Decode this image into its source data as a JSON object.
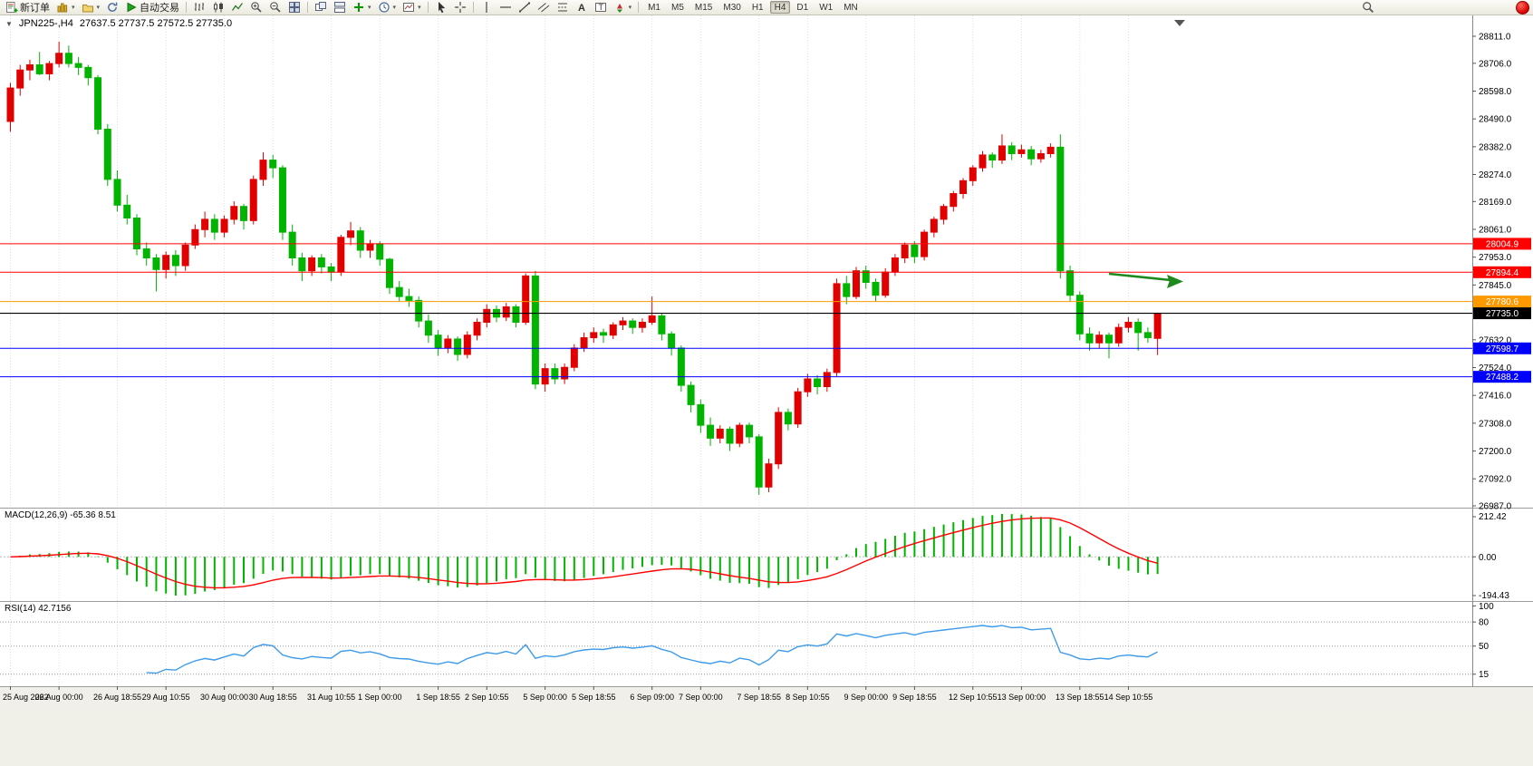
{
  "toolbar": {
    "new_order_label": "新订单",
    "auto_trading_label": "自动交易",
    "timeframes": [
      "M1",
      "M5",
      "M15",
      "M30",
      "H1",
      "H4",
      "D1",
      "W1",
      "MN"
    ],
    "active_timeframe": "H4"
  },
  "chart": {
    "symbol_period": "JPN225-,H4",
    "ohlc": "27637.5 27737.5 27572.5 27735.0"
  },
  "price_axis": {
    "ticks": [
      "28811.0",
      "28706.0",
      "28598.0",
      "28490.0",
      "28382.0",
      "28274.0",
      "28169.0",
      "28061.0",
      "27953.0",
      "27845.0",
      "27632.0",
      "27524.0",
      "27416.0",
      "27308.0",
      "27200.0",
      "27092.0",
      "26987.0"
    ]
  },
  "levels": [
    {
      "price": 28004.9,
      "label": "28004.9",
      "color": "#FF0000"
    },
    {
      "price": 27894.4,
      "label": "27894.4",
      "color": "#FF0000"
    },
    {
      "price": 27780.6,
      "label": "27780.6",
      "color": "#FF9900"
    },
    {
      "price": 27735.0,
      "label": "27735.0",
      "color": "#000000",
      "is_current": true
    },
    {
      "price": 27598.7,
      "label": "27598.7",
      "color": "#0000FF"
    },
    {
      "price": 27488.2,
      "label": "27488.2",
      "color": "#0000FF"
    }
  ],
  "annotation_arrow": {
    "color": "#1E8A1E"
  },
  "macd_panel": {
    "label": "MACD(12,26,9) -65.36 8.51",
    "axis_max": "212.42",
    "axis_zero": "0.00",
    "axis_min": "-194.43",
    "histogram_color": "#00B400",
    "signal_color": "#FF0000"
  },
  "rsi_panel": {
    "label": "RSI(14) 42.7156",
    "axis_ticks": [
      "100",
      "80",
      "50",
      "15"
    ],
    "level_lines": [
      80,
      50,
      15
    ],
    "line_color": "#3D9BE9"
  },
  "chart_data": {
    "type": "candlestick",
    "symbol": "JPN225-",
    "period": "H4",
    "up_color": "#E00000",
    "down_color": "#00B400",
    "price_range": [
      26980,
      28892
    ],
    "indicators": [
      {
        "name": "MACD",
        "params": [
          12,
          26,
          9
        ],
        "values_label": "-65.36 8.51"
      },
      {
        "name": "RSI",
        "params": [
          14
        ],
        "value_label": "42.7156"
      }
    ],
    "time_labels": [
      "25 Aug 2022",
      "26 Aug 00:00",
      "26 Aug 18:55",
      "29 Aug 10:55",
      "30 Aug 00:00",
      "30 Aug 18:55",
      "31 Aug 10:55",
      "1 Sep 00:00",
      "1 Sep 18:55",
      "2 Sep 10:55",
      "5 Sep 00:00",
      "5 Sep 18:55",
      "6 Sep 09:00",
      "7 Sep 00:00",
      "7 Sep 18:55",
      "8 Sep 10:55",
      "9 Sep 00:00",
      "9 Sep 18:55",
      "12 Sep 10:55",
      "13 Sep 00:00",
      "13 Sep 18:55",
      "14 Sep 10:55"
    ],
    "candles": [
      [
        28480,
        28630,
        28440,
        28610
      ],
      [
        28610,
        28700,
        28580,
        28680
      ],
      [
        28680,
        28720,
        28640,
        28700
      ],
      [
        28700,
        28750,
        28660,
        28665
      ],
      [
        28665,
        28715,
        28640,
        28705
      ],
      [
        28705,
        28790,
        28690,
        28745
      ],
      [
        28745,
        28775,
        28690,
        28705
      ],
      [
        28705,
        28730,
        28660,
        28690
      ],
      [
        28690,
        28700,
        28620,
        28650
      ],
      [
        28650,
        28660,
        28430,
        28450
      ],
      [
        28450,
        28470,
        28230,
        28255
      ],
      [
        28255,
        28290,
        28130,
        28155
      ],
      [
        28155,
        28195,
        28080,
        28105
      ],
      [
        28105,
        28120,
        27960,
        27985
      ],
      [
        27985,
        28010,
        27920,
        27950
      ],
      [
        27950,
        27965,
        27820,
        27905
      ],
      [
        27905,
        27975,
        27870,
        27960
      ],
      [
        27960,
        27980,
        27880,
        27920
      ],
      [
        27920,
        28010,
        27900,
        28000
      ],
      [
        28000,
        28080,
        27985,
        28060
      ],
      [
        28060,
        28130,
        28030,
        28100
      ],
      [
        28100,
        28120,
        28020,
        28050
      ],
      [
        28050,
        28115,
        28030,
        28100
      ],
      [
        28100,
        28170,
        28080,
        28150
      ],
      [
        28150,
        28160,
        28060,
        28095
      ],
      [
        28095,
        28270,
        28080,
        28255
      ],
      [
        28255,
        28360,
        28230,
        28330
      ],
      [
        28330,
        28350,
        28260,
        28300
      ],
      [
        28300,
        28310,
        28020,
        28050
      ],
      [
        28050,
        28080,
        27920,
        27950
      ],
      [
        27950,
        27970,
        27860,
        27900
      ],
      [
        27900,
        27960,
        27880,
        27950
      ],
      [
        27950,
        27965,
        27890,
        27915
      ],
      [
        27915,
        27930,
        27860,
        27895
      ],
      [
        27895,
        28040,
        27880,
        28030
      ],
      [
        28030,
        28090,
        28000,
        28055
      ],
      [
        28055,
        28070,
        27950,
        27980
      ],
      [
        27980,
        28020,
        27950,
        28005
      ],
      [
        28005,
        28015,
        27920,
        27945
      ],
      [
        27945,
        27950,
        27810,
        27835
      ],
      [
        27835,
        27860,
        27780,
        27800
      ],
      [
        27800,
        27830,
        27760,
        27785
      ],
      [
        27785,
        27800,
        27680,
        27705
      ],
      [
        27705,
        27730,
        27620,
        27650
      ],
      [
        27650,
        27670,
        27570,
        27600
      ],
      [
        27600,
        27650,
        27580,
        27635
      ],
      [
        27635,
        27645,
        27550,
        27575
      ],
      [
        27575,
        27665,
        27560,
        27650
      ],
      [
        27650,
        27715,
        27630,
        27700
      ],
      [
        27700,
        27770,
        27680,
        27750
      ],
      [
        27750,
        27765,
        27700,
        27720
      ],
      [
        27720,
        27775,
        27705,
        27760
      ],
      [
        27760,
        27770,
        27680,
        27700
      ],
      [
        27700,
        27890,
        27690,
        27880
      ],
      [
        27880,
        27900,
        27440,
        27460
      ],
      [
        27460,
        27540,
        27430,
        27520
      ],
      [
        27520,
        27540,
        27460,
        27480
      ],
      [
        27480,
        27540,
        27460,
        27525
      ],
      [
        27525,
        27615,
        27510,
        27600
      ],
      [
        27600,
        27660,
        27585,
        27640
      ],
      [
        27640,
        27680,
        27620,
        27660
      ],
      [
        27660,
        27675,
        27620,
        27650
      ],
      [
        27650,
        27700,
        27635,
        27690
      ],
      [
        27690,
        27720,
        27670,
        27705
      ],
      [
        27705,
        27715,
        27655,
        27680
      ],
      [
        27680,
        27715,
        27660,
        27700
      ],
      [
        27700,
        27800,
        27690,
        27725
      ],
      [
        27725,
        27735,
        27630,
        27655
      ],
      [
        27655,
        27665,
        27570,
        27600
      ],
      [
        27600,
        27610,
        27430,
        27455
      ],
      [
        27455,
        27470,
        27350,
        27380
      ],
      [
        27380,
        27400,
        27270,
        27300
      ],
      [
        27300,
        27330,
        27220,
        27250
      ],
      [
        27250,
        27300,
        27230,
        27285
      ],
      [
        27285,
        27295,
        27200,
        27230
      ],
      [
        27230,
        27310,
        27215,
        27300
      ],
      [
        27300,
        27310,
        27230,
        27255
      ],
      [
        27255,
        27265,
        27030,
        27060
      ],
      [
        27060,
        27170,
        27040,
        27150
      ],
      [
        27150,
        27370,
        27130,
        27350
      ],
      [
        27350,
        27365,
        27280,
        27305
      ],
      [
        27305,
        27445,
        27290,
        27430
      ],
      [
        27430,
        27500,
        27410,
        27480
      ],
      [
        27480,
        27495,
        27420,
        27450
      ],
      [
        27450,
        27520,
        27430,
        27505
      ],
      [
        27505,
        27870,
        27490,
        27850
      ],
      [
        27850,
        27880,
        27770,
        27800
      ],
      [
        27800,
        27915,
        27790,
        27900
      ],
      [
        27900,
        27920,
        27830,
        27855
      ],
      [
        27855,
        27870,
        27780,
        27805
      ],
      [
        27805,
        27910,
        27795,
        27895
      ],
      [
        27895,
        27965,
        27880,
        27950
      ],
      [
        27950,
        28010,
        27930,
        28000
      ],
      [
        28000,
        28015,
        27930,
        27955
      ],
      [
        27955,
        28060,
        27940,
        28050
      ],
      [
        28050,
        28110,
        28030,
        28100
      ],
      [
        28100,
        28160,
        28080,
        28150
      ],
      [
        28150,
        28210,
        28130,
        28200
      ],
      [
        28200,
        28260,
        28180,
        28250
      ],
      [
        28250,
        28310,
        28230,
        28300
      ],
      [
        28300,
        28365,
        28285,
        28350
      ],
      [
        28350,
        28360,
        28300,
        28330
      ],
      [
        28330,
        28430,
        28315,
        28385
      ],
      [
        28385,
        28400,
        28330,
        28355
      ],
      [
        28355,
        28390,
        28340,
        28370
      ],
      [
        28370,
        28385,
        28310,
        28335
      ],
      [
        28335,
        28370,
        28320,
        28355
      ],
      [
        28355,
        28395,
        28340,
        28380
      ],
      [
        28380,
        28430,
        27870,
        27900
      ],
      [
        27900,
        27920,
        27780,
        27805
      ],
      [
        27805,
        27820,
        27630,
        27655
      ],
      [
        27655,
        27680,
        27590,
        27620
      ],
      [
        27620,
        27665,
        27600,
        27650
      ],
      [
        27650,
        27660,
        27560,
        27620
      ],
      [
        27620,
        27695,
        27605,
        27680
      ],
      [
        27680,
        27720,
        27660,
        27700
      ],
      [
        27700,
        27715,
        27590,
        27660
      ],
      [
        27660,
        27680,
        27620,
        27640
      ],
      [
        27637.5,
        27737.5,
        27572.5,
        27735.0
      ]
    ]
  }
}
